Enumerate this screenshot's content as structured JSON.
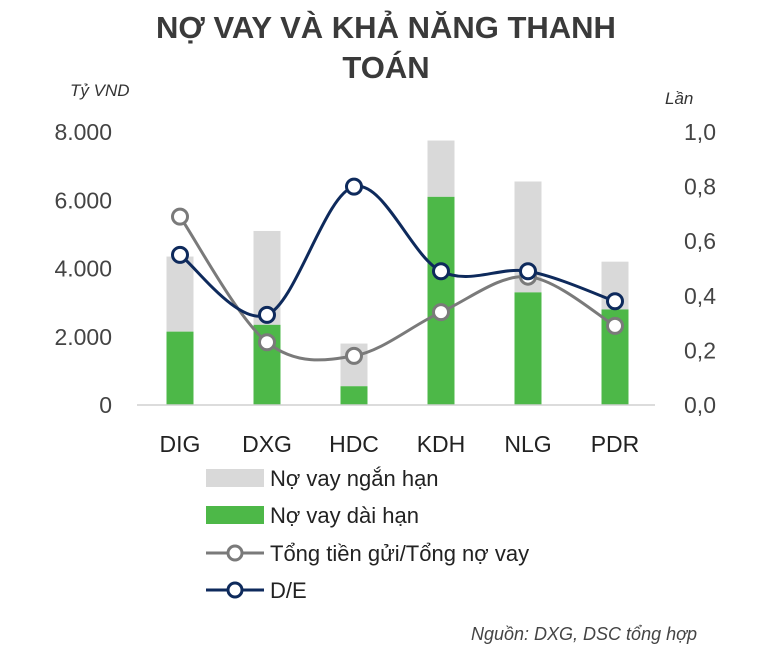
{
  "chart_data": {
    "type": "bar",
    "title_lines": [
      "NỢ VAY VÀ KHẢ NĂNG THANH",
      "TOÁN"
    ],
    "ylabel_left": "Tỷ VND",
    "ylabel_right": "Lần",
    "categories": [
      "DIG",
      "DXG",
      "HDC",
      "KDH",
      "NLG",
      "PDR"
    ],
    "ylim_left": [
      0,
      8000
    ],
    "ylim_right": [
      0,
      1.0
    ],
    "left_ticks": [
      "0",
      "2.000",
      "4.000",
      "6.000",
      "8.000"
    ],
    "right_ticks": [
      "0,0",
      "0,2",
      "0,4",
      "0,6",
      "0,8",
      "1,0"
    ],
    "series": [
      {
        "name": "Nợ vay ngắn hạn",
        "kind": "stacked_bar",
        "axis": "left",
        "color": "#d9d9d9",
        "values": [
          2200,
          2750,
          1250,
          1650,
          3250,
          1400
        ]
      },
      {
        "name": "Nợ vay dài hạn",
        "kind": "stacked_bar",
        "axis": "left",
        "color": "#4db848",
        "values": [
          2150,
          2350,
          550,
          6100,
          3300,
          2800
        ]
      },
      {
        "name": "Tổng tiền gửi/Tổng nợ vay",
        "kind": "line",
        "axis": "right",
        "color": "#7a7a7a",
        "values": [
          0.69,
          0.23,
          0.18,
          0.34,
          0.47,
          0.29
        ]
      },
      {
        "name": "D/E",
        "kind": "line",
        "axis": "right",
        "color": "#0e2a5c",
        "values": [
          0.55,
          0.33,
          0.8,
          0.49,
          0.49,
          0.38
        ]
      }
    ],
    "legend": [
      "Nợ vay ngắn hạn",
      "Nợ vay dài hạn",
      "Tổng tiền gửi/Tổng nợ vay",
      "D/E"
    ],
    "legend_position": "bottom",
    "grid": false,
    "source": "Nguồn: DXG, DSC tổng hợp"
  }
}
